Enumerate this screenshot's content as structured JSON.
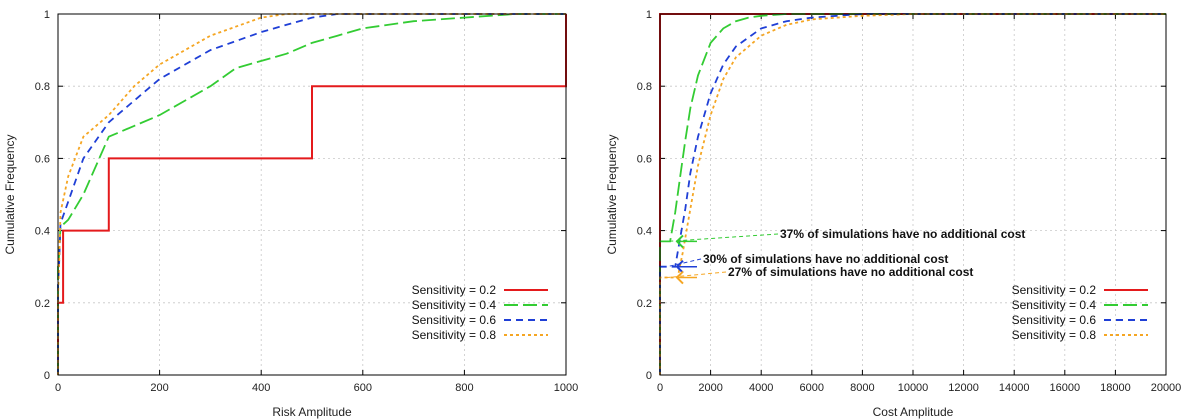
{
  "chart_data": [
    {
      "type": "line",
      "step": true,
      "xlabel": "Risk Amplitude",
      "ylabel": "Cumulative Frequency",
      "xlim": [
        0,
        1000
      ],
      "ylim": [
        0,
        1
      ],
      "xticks": [
        "0",
        "200",
        "400",
        "600",
        "800",
        "1000"
      ],
      "yticks": [
        "0",
        "0.2",
        "0.4",
        "0.6",
        "0.8",
        "1"
      ],
      "grid": true,
      "legend_position": "bottom-right",
      "series": [
        {
          "name": "Sensitivity = 0.2",
          "color": "#e41a1c",
          "dash": "solid",
          "x": [
            0,
            0,
            10,
            10,
            100,
            100,
            500,
            500,
            1000,
            1000
          ],
          "y": [
            0,
            0.2,
            0.2,
            0.4,
            0.4,
            0.6,
            0.6,
            0.8,
            0.8,
            1.0
          ]
        },
        {
          "name": "Sensitivity = 0.4",
          "color": "#33cc33",
          "dash": "long",
          "x": [
            0,
            0,
            2,
            5,
            20,
            50,
            100,
            150,
            200,
            300,
            350,
            450,
            500,
            550,
            600,
            700,
            800,
            900,
            1000
          ],
          "y": [
            0,
            0.3,
            0.33,
            0.41,
            0.43,
            0.5,
            0.66,
            0.69,
            0.72,
            0.8,
            0.85,
            0.89,
            0.92,
            0.94,
            0.96,
            0.98,
            0.99,
            1.0,
            1.0
          ]
        },
        {
          "name": "Sensitivity = 0.6",
          "color": "#1f3fd6",
          "dash": "medium",
          "x": [
            0,
            0,
            2,
            5,
            20,
            50,
            100,
            150,
            200,
            300,
            400,
            450,
            500,
            550,
            600,
            1000
          ],
          "y": [
            0,
            0.25,
            0.3,
            0.42,
            0.48,
            0.6,
            0.7,
            0.76,
            0.82,
            0.9,
            0.95,
            0.97,
            0.99,
            1.0,
            1.0,
            1.0
          ]
        },
        {
          "name": "Sensitivity = 0.8",
          "color": "#f5a623",
          "dash": "dotted",
          "x": [
            0,
            0,
            2,
            5,
            20,
            50,
            100,
            150,
            200,
            300,
            400,
            450,
            500,
            1000
          ],
          "y": [
            0,
            0.22,
            0.3,
            0.45,
            0.55,
            0.66,
            0.72,
            0.8,
            0.86,
            0.94,
            0.99,
            1.0,
            1.0,
            1.0
          ]
        }
      ]
    },
    {
      "type": "line",
      "step": true,
      "xlabel": "Cost Amplitude",
      "ylabel": "Cumulative Frequency",
      "xlim": [
        0,
        20000
      ],
      "ylim": [
        0,
        1
      ],
      "xticks": [
        "0",
        "2000",
        "4000",
        "6000",
        "8000",
        "10000",
        "12000",
        "14000",
        "16000",
        "18000",
        "20000"
      ],
      "yticks": [
        "0",
        "0.2",
        "0.4",
        "0.6",
        "0.8",
        "1"
      ],
      "grid": true,
      "legend_position": "bottom-right",
      "series": [
        {
          "name": "Sensitivity = 0.2",
          "color": "#e41a1c",
          "dash": "solid",
          "x": [
            0,
            0,
            20000
          ],
          "y": [
            0,
            1.0,
            1.0
          ]
        },
        {
          "name": "Sensitivity = 0.4",
          "color": "#33cc33",
          "dash": "long",
          "x": [
            0,
            0,
            400,
            600,
            800,
            1000,
            1200,
            1500,
            2000,
            2500,
            3000,
            3500,
            4000,
            5000,
            6000,
            20000
          ],
          "y": [
            0,
            0.37,
            0.37,
            0.45,
            0.55,
            0.65,
            0.74,
            0.83,
            0.92,
            0.96,
            0.98,
            0.99,
            0.995,
            1.0,
            1.0,
            1.0
          ]
        },
        {
          "name": "Sensitivity = 0.6",
          "color": "#1f3fd6",
          "dash": "medium",
          "x": [
            0,
            0,
            600,
            800,
            1000,
            1200,
            1500,
            2000,
            2500,
            3000,
            4000,
            5000,
            6000,
            7000,
            8000,
            20000
          ],
          "y": [
            0,
            0.3,
            0.3,
            0.38,
            0.46,
            0.56,
            0.66,
            0.78,
            0.86,
            0.91,
            0.96,
            0.98,
            0.99,
            0.995,
            1.0,
            1.0
          ]
        },
        {
          "name": "Sensitivity = 0.8",
          "color": "#f5a623",
          "dash": "dotted",
          "x": [
            0,
            0,
            700,
            900,
            1100,
            1300,
            1500,
            2000,
            2500,
            3000,
            4000,
            5000,
            6000,
            8000,
            10000,
            20000
          ],
          "y": [
            0,
            0.27,
            0.27,
            0.34,
            0.42,
            0.5,
            0.58,
            0.72,
            0.82,
            0.88,
            0.94,
            0.97,
            0.985,
            0.995,
            1.0,
            1.0
          ]
        }
      ],
      "annotations": [
        {
          "text": "37% of simulations have no additional cost",
          "color": "#33cc33",
          "x": 0,
          "y": 0.37
        },
        {
          "text": "30% of simulations have no additional cost",
          "color": "#1f3fd6",
          "x": 0,
          "y": 0.3
        },
        {
          "text": "27% of simulations have no additional cost",
          "color": "#f5a623",
          "x": 0,
          "y": 0.27
        }
      ]
    }
  ]
}
